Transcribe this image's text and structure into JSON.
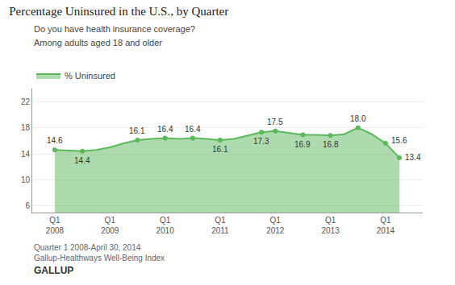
{
  "chart_data": {
    "type": "area",
    "title": "Percentage Uninsured in the U.S., by Quarter",
    "subtitle": [
      "Do you have health insurance coverage?",
      "Among adults aged 18 and older"
    ],
    "footer": [
      "Quarter 1 2008-April 30, 2014",
      "Gallup-Healthways Well-Being Index"
    ],
    "brand": "GALLUP",
    "categories": [
      "Q1\n2008",
      null,
      null,
      null,
      "Q1\n2009",
      null,
      null,
      null,
      "Q1\n2010",
      null,
      null,
      null,
      "Q1\n2011",
      null,
      null,
      null,
      "Q1\n2012",
      null,
      null,
      null,
      "Q1\n2013",
      null,
      null,
      null,
      "Q1\n2014",
      null
    ],
    "series": [
      {
        "name": "% Uninsured",
        "color": "#5cb85c",
        "values": [
          14.6,
          14.5,
          14.4,
          14.6,
          15.0,
          15.6,
          16.1,
          16.3,
          16.4,
          16.3,
          16.4,
          16.3,
          16.1,
          16.3,
          16.8,
          17.3,
          17.5,
          17.2,
          16.9,
          16.9,
          16.8,
          17.0,
          18.0,
          17.0,
          15.6,
          13.4
        ],
        "value_labels": [
          "14.6",
          null,
          "14.4",
          null,
          null,
          null,
          "16.1",
          null,
          "16.4",
          null,
          "16.4",
          null,
          "16.1",
          null,
          null,
          "17.3",
          "17.5",
          null,
          "16.9",
          null,
          "16.8",
          null,
          "18.0",
          null,
          "15.6",
          "13.4"
        ]
      }
    ],
    "ylim": [
      5,
      24
    ],
    "yticks": [
      6,
      10,
      14,
      18,
      22
    ],
    "grid": true,
    "legend": "top left",
    "data_labels": true
  }
}
